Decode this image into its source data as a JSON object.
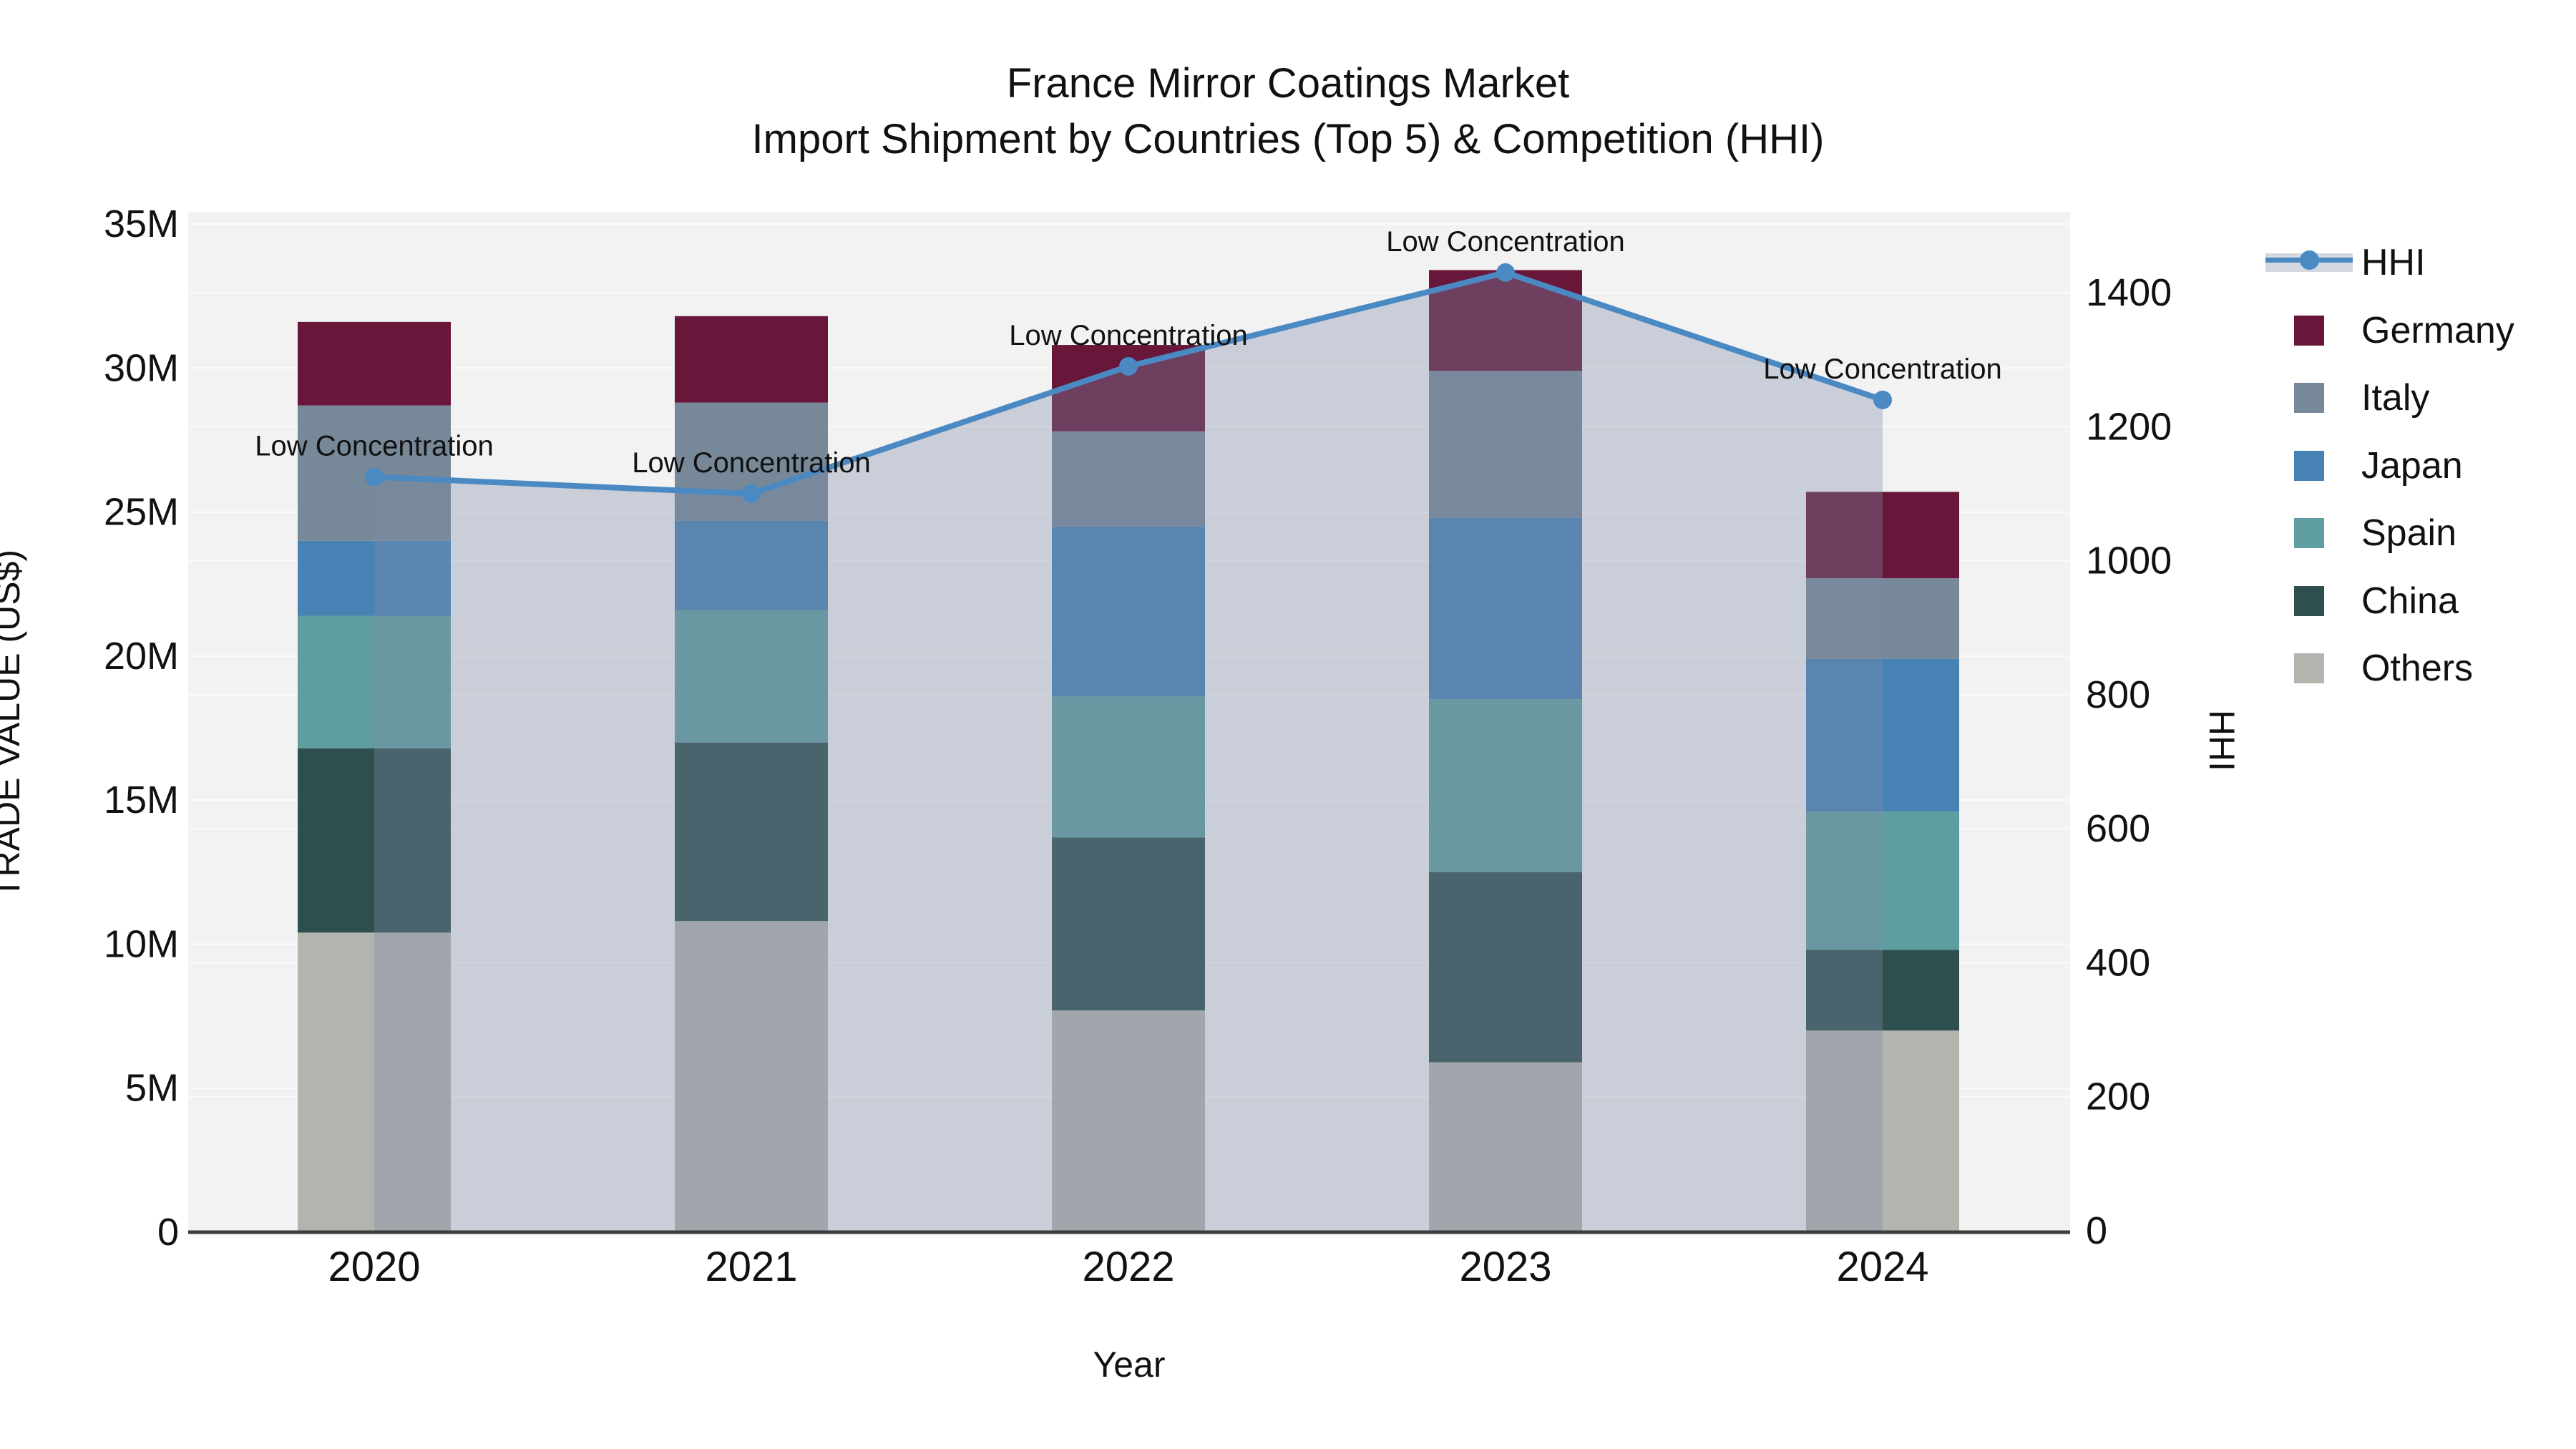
{
  "title": {
    "line1": "France Mirror Coatings Market",
    "line2": "Import Shipment by Countries (Top 5) & Competition (HHI)"
  },
  "chart_data": {
    "type": "bar",
    "subtype": "stacked-bars-with-line-overlay",
    "title": "France Mirror Coatings Market — Import Shipment by Countries (Top 5) & Competition (HHI)",
    "categories": [
      "2020",
      "2021",
      "2022",
      "2023",
      "2024"
    ],
    "value_unit": "million US$",
    "series": [
      {
        "name": "Others",
        "color": "#b2b4ae",
        "values": [
          10.4,
          10.8,
          7.7,
          5.9,
          7.0
        ]
      },
      {
        "name": "China",
        "color": "#2f4f4f",
        "values": [
          6.4,
          6.2,
          6.0,
          6.6,
          2.8
        ]
      },
      {
        "name": "Spain",
        "color": "#5f9ea0",
        "values": [
          4.6,
          4.6,
          4.9,
          6.0,
          4.8
        ]
      },
      {
        "name": "Japan",
        "color": "#4682b4",
        "values": [
          2.6,
          3.1,
          5.9,
          6.3,
          5.3
        ]
      },
      {
        "name": "Italy",
        "color": "#778899",
        "values": [
          4.7,
          4.1,
          3.3,
          5.1,
          2.8
        ]
      },
      {
        "name": "Germany",
        "color": "#68163a",
        "values": [
          2.9,
          3.0,
          3.0,
          3.5,
          3.0
        ]
      }
    ],
    "bar_totals": [
      31.6,
      31.8,
      30.8,
      33.4,
      25.7
    ],
    "line_series": {
      "name": "HHI",
      "color": "#4a89c2",
      "area_fill": "rgba(125,140,165,0.35)",
      "values": [
        1125,
        1100,
        1290,
        1430,
        1240
      ],
      "annotations": [
        "Low Concentration",
        "Low Concentration",
        "Low Concentration",
        "Low Concentration",
        "Low Concentration"
      ]
    },
    "xlabel": "Year",
    "ylabel": "TRADE VALUE (US$)",
    "y2label": "HHI",
    "ylim": [
      0,
      35000000
    ],
    "yticks": [
      "0",
      "5M",
      "10M",
      "15M",
      "20M",
      "25M",
      "30M",
      "35M"
    ],
    "y2lim": [
      0,
      1400
    ],
    "y2ticks": [
      "0",
      "200",
      "400",
      "600",
      "800",
      "1000",
      "1200",
      "1400"
    ],
    "grid": "on",
    "legend_position": "right"
  },
  "legend": {
    "items": [
      {
        "label": "HHI",
        "glyph": "line-marker",
        "color": "#4a89c2",
        "band": "#d2d7e0"
      },
      {
        "label": "Germany",
        "glyph": "swatch",
        "color": "#68163a"
      },
      {
        "label": "Italy",
        "glyph": "swatch",
        "color": "#778899"
      },
      {
        "label": "Japan",
        "glyph": "swatch",
        "color": "#4682b4"
      },
      {
        "label": "Spain",
        "glyph": "swatch",
        "color": "#5f9ea0"
      },
      {
        "label": "China",
        "glyph": "swatch",
        "color": "#2f4f4f"
      },
      {
        "label": "Others",
        "glyph": "swatch",
        "color": "#b2b4ae"
      }
    ]
  },
  "colors": {
    "plot_background": "#f2f2f3",
    "gridline": "#fbfbfc",
    "axis_line": "#3d3d3d",
    "text": "#111111"
  }
}
